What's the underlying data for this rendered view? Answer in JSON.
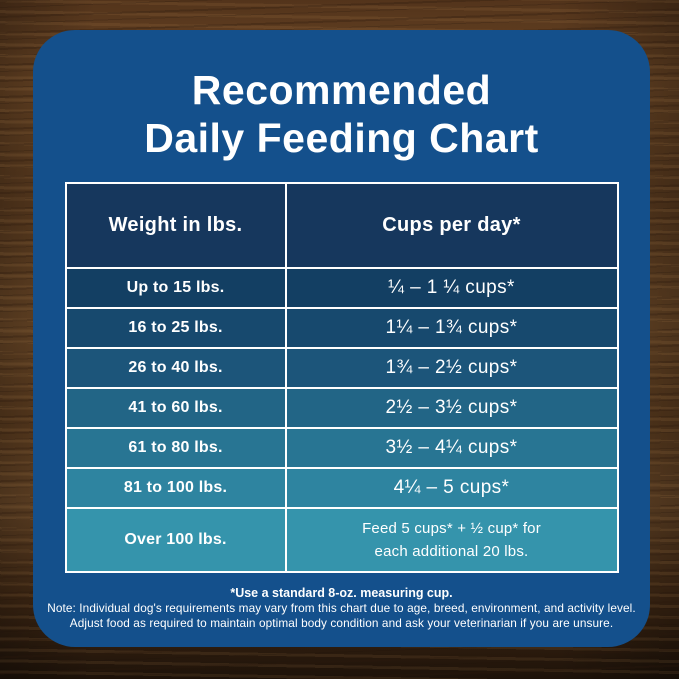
{
  "chart_data": {
    "type": "table",
    "title": "Recommended Daily Feeding Chart",
    "columns": [
      "Weight in lbs.",
      "Cups per day*"
    ],
    "rows": [
      [
        "Up to 15 lbs.",
        "¼ – 1 ¼ cups*"
      ],
      [
        "16 to 25 lbs.",
        "1¼ – 1¾ cups*"
      ],
      [
        "26 to 40 lbs.",
        "1¾ – 2½ cups*"
      ],
      [
        "41 to 60 lbs.",
        "2½ – 3½ cups*"
      ],
      [
        "61 to 80 lbs.",
        "3½ – 4¼ cups*"
      ],
      [
        "81 to 100 lbs.",
        "4¼ – 5 cups*"
      ],
      [
        "Over 100 lbs.",
        "Feed 5 cups* + ½ cup* for each additional 20 lbs."
      ]
    ],
    "footnote": "*Use a standard 8-oz. measuring cup.",
    "legend_position": "none",
    "grid": false
  },
  "title": {
    "line1": "Recommended",
    "line2": "Daily Feeding Chart"
  },
  "table": {
    "header_bg": "#16375d",
    "headers": [
      "Weight in lbs.",
      "Cups per day*"
    ],
    "rows": [
      {
        "weight": "Up to 15 lbs.",
        "cups": "¼ – 1 ¼ cups*",
        "bg": "#133f63"
      },
      {
        "weight": "16 to 25 lbs.",
        "cups": "1¼ – 1¾ cups*",
        "bg": "#17496e"
      },
      {
        "weight": "26 to 40 lbs.",
        "cups": "1¾ – 2½ cups*",
        "bg": "#1c557a"
      },
      {
        "weight": "41 to 60 lbs.",
        "cups": "2½ – 3½ cups*",
        "bg": "#226586"
      },
      {
        "weight": "61 to 80 lbs.",
        "cups": "3½ – 4¼ cups*",
        "bg": "#287593"
      },
      {
        "weight": "81 to 100 lbs.",
        "cups": "4¼ – 5 cups*",
        "bg": "#2e84a0"
      },
      {
        "weight": "Over 100 lbs.",
        "cups": "Feed 5 cups* + ½ cup* for\neach additional 20 lbs.",
        "bg": "#3594ac"
      }
    ]
  },
  "footnotes": {
    "cup": "*Use a standard 8-oz. measuring cup.",
    "note1": "Note: Individual dog's requirements may vary from this chart due to age, breed, environment, and activity level.",
    "note2": "Adjust food as required to maintain optimal body condition and ask your veterinarian if you are unsure."
  },
  "colors": {
    "card_bg": "#14508c",
    "table_border": "#ffffff",
    "text": "#ffffff"
  }
}
